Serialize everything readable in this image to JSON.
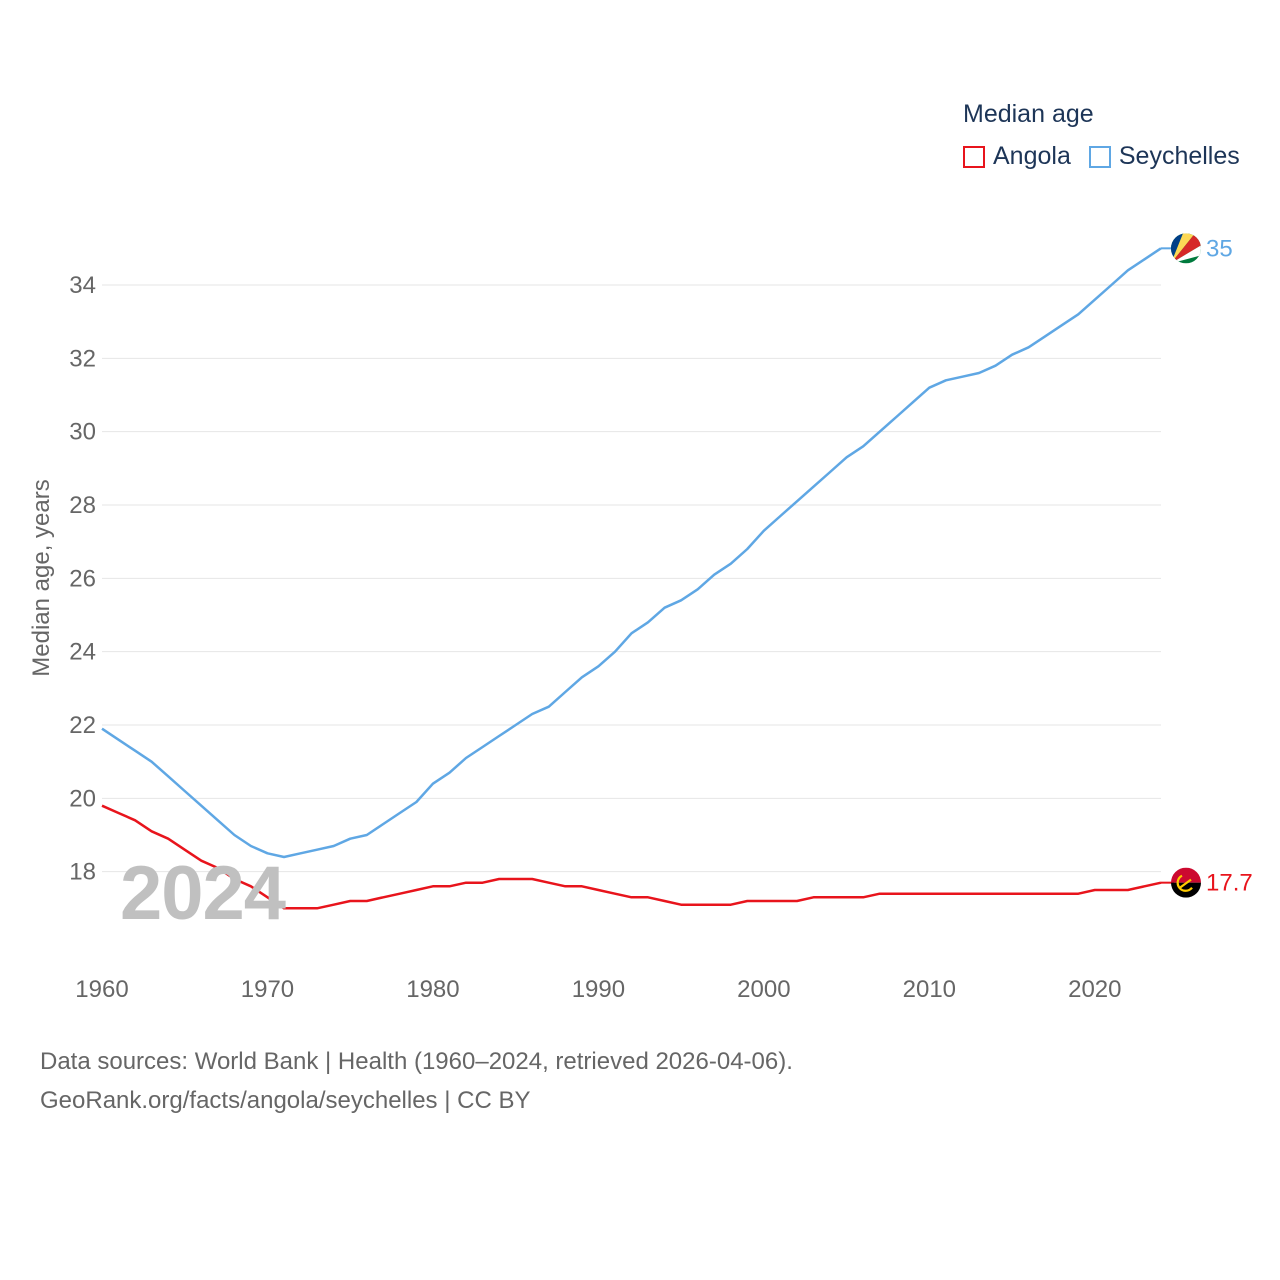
{
  "chart_data": {
    "type": "line",
    "title": "",
    "legend_title": "Median age",
    "ylabel": "Median age, years",
    "xlabel": "",
    "xlim": [
      1960,
      2024
    ],
    "ylim": [
      16,
      35.5
    ],
    "xticks": [
      "1960",
      "1970",
      "1980",
      "1990",
      "2000",
      "2010",
      "2020"
    ],
    "yticks": [
      "18",
      "20",
      "22",
      "24",
      "26",
      "28",
      "30",
      "32",
      "34"
    ],
    "grid": true,
    "legend_position": "top-right",
    "watermark_year": "2024",
    "x": [
      1960,
      1961,
      1962,
      1963,
      1964,
      1965,
      1966,
      1967,
      1968,
      1969,
      1970,
      1971,
      1972,
      1973,
      1974,
      1975,
      1976,
      1977,
      1978,
      1979,
      1980,
      1981,
      1982,
      1983,
      1984,
      1985,
      1986,
      1987,
      1988,
      1989,
      1990,
      1991,
      1992,
      1993,
      1994,
      1995,
      1996,
      1997,
      1998,
      1999,
      2000,
      2001,
      2002,
      2003,
      2004,
      2005,
      2006,
      2007,
      2008,
      2009,
      2010,
      2011,
      2012,
      2013,
      2014,
      2015,
      2016,
      2017,
      2018,
      2019,
      2020,
      2021,
      2022,
      2023,
      2024
    ],
    "series": [
      {
        "name": "Angola",
        "color": "#e8141c",
        "end_label": "17.7",
        "values": [
          19.8,
          19.6,
          19.4,
          19.1,
          18.9,
          18.6,
          18.3,
          18.1,
          17.8,
          17.6,
          17.3,
          17.0,
          17.0,
          17.0,
          17.1,
          17.2,
          17.2,
          17.3,
          17.4,
          17.5,
          17.6,
          17.6,
          17.7,
          17.7,
          17.8,
          17.8,
          17.8,
          17.7,
          17.6,
          17.6,
          17.5,
          17.4,
          17.3,
          17.3,
          17.2,
          17.1,
          17.1,
          17.1,
          17.1,
          17.2,
          17.2,
          17.2,
          17.2,
          17.3,
          17.3,
          17.3,
          17.3,
          17.4,
          17.4,
          17.4,
          17.4,
          17.4,
          17.4,
          17.4,
          17.4,
          17.4,
          17.4,
          17.4,
          17.4,
          17.4,
          17.5,
          17.5,
          17.5,
          17.6,
          17.7
        ]
      },
      {
        "name": "Seychelles",
        "color": "#5fa7e4",
        "end_label": "35",
        "values": [
          21.9,
          21.6,
          21.3,
          21.0,
          20.6,
          20.2,
          19.8,
          19.4,
          19.0,
          18.7,
          18.5,
          18.4,
          18.5,
          18.6,
          18.7,
          18.9,
          19.0,
          19.3,
          19.6,
          19.9,
          20.4,
          20.7,
          21.1,
          21.4,
          21.7,
          22.0,
          22.3,
          22.5,
          22.9,
          23.3,
          23.6,
          24.0,
          24.5,
          24.8,
          25.2,
          25.4,
          25.7,
          26.1,
          26.4,
          26.8,
          27.3,
          27.7,
          28.1,
          28.5,
          28.9,
          29.3,
          29.6,
          30.0,
          30.4,
          30.8,
          31.2,
          31.4,
          31.5,
          31.6,
          31.8,
          32.1,
          32.3,
          32.6,
          32.9,
          33.2,
          33.6,
          34.0,
          34.4,
          34.7,
          35.0
        ]
      }
    ]
  },
  "source": {
    "line1": "Data sources: World Bank | Health (1960–2024, retrieved 2026-04-06).",
    "line2": "GeoRank.org/facts/angola/seychelles | CC BY"
  }
}
